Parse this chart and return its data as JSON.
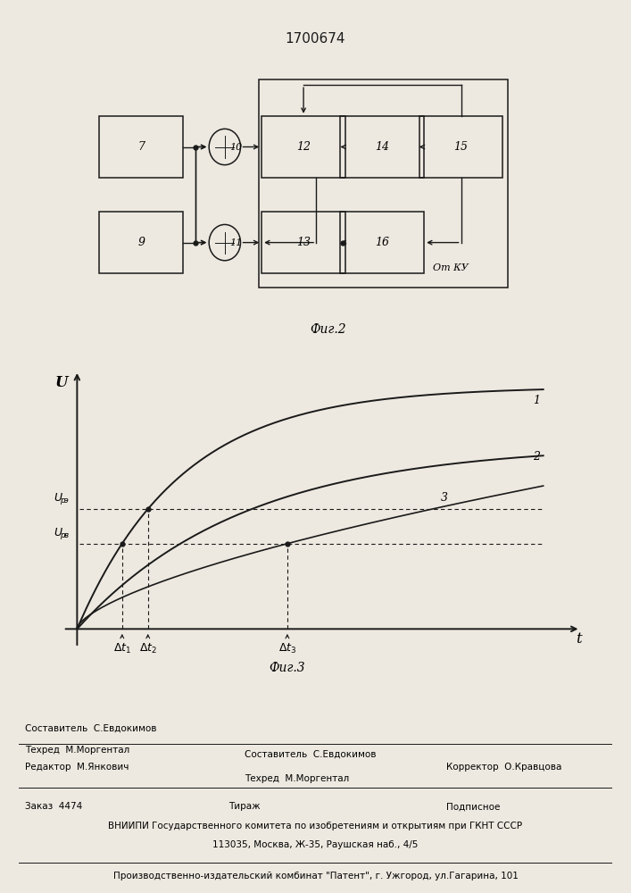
{
  "title": "1700674",
  "fig2_caption": "Фиг.2",
  "fig3_caption": "Фиг.3",
  "bg_color": "#e8e4dc",
  "Upz": 0.52,
  "Upv": 0.37,
  "footer_editor": "Редактор  М.Янкович",
  "footer_compiler1": "Составитель  С.Евдокимов",
  "footer_techred": "Техред  М.Моргентал",
  "footer_corrector": "Корректор  О.Кравцова",
  "footer_zakaz": "Заказ  4474",
  "footer_tirazh": "Тираж",
  "footer_podpisnoe": "Подписное",
  "footer_vniiipi": "ВНИИПИ Государственного комитета по изобретениям и открытиям при ГКНТ СССР",
  "footer_address": "113035, Москва, Ж-35, Раушская наб., 4/5",
  "footer_patent": "Производственно-издательский комбинат \"Патент\", г. Ужгород, ул.Гагарина, 101"
}
